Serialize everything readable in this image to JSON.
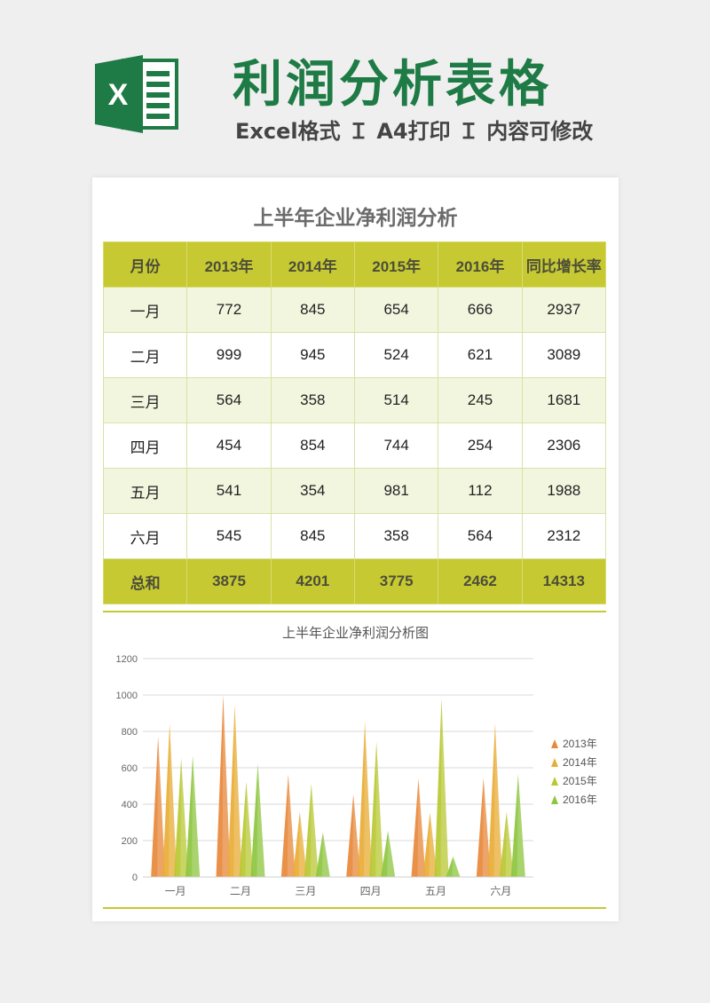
{
  "header": {
    "title": "利润分析表格",
    "subtitle": "Excel格式 Ｉ A4打印 Ｉ 内容可修改",
    "logo_letter": "X",
    "logo_icon": "excel-logo-icon",
    "brand_color": "#1e7b45"
  },
  "table": {
    "title": "上半年企业净利润分析",
    "columns": [
      "月份",
      "2013年",
      "2014年",
      "2015年",
      "2016年",
      "同比增长率"
    ],
    "rows": [
      [
        "一月",
        "772",
        "845",
        "654",
        "666",
        "2937"
      ],
      [
        "二月",
        "999",
        "945",
        "524",
        "621",
        "3089"
      ],
      [
        "三月",
        "564",
        "358",
        "514",
        "245",
        "1681"
      ],
      [
        "四月",
        "454",
        "854",
        "744",
        "254",
        "2306"
      ],
      [
        "五月",
        "541",
        "354",
        "981",
        "112",
        "1988"
      ],
      [
        "六月",
        "545",
        "845",
        "358",
        "564",
        "2312"
      ]
    ],
    "total": [
      "总和",
      "3875",
      "4201",
      "3775",
      "2462",
      "14313"
    ],
    "header_color": "#c6c931",
    "stripe_color": "#f3f6df"
  },
  "chart_data": {
    "type": "bar",
    "title": "上半年企业净利润分析图",
    "categories": [
      "一月",
      "二月",
      "三月",
      "四月",
      "五月",
      "六月"
    ],
    "series": [
      {
        "name": "2013年",
        "values": [
          772,
          999,
          564,
          454,
          541,
          545
        ],
        "color": "#e8883a"
      },
      {
        "name": "2014年",
        "values": [
          845,
          945,
          358,
          854,
          354,
          845
        ],
        "color": "#e9ad35"
      },
      {
        "name": "2015年",
        "values": [
          654,
          524,
          514,
          744,
          981,
          358
        ],
        "color": "#b9c832"
      },
      {
        "name": "2016年",
        "values": [
          666,
          621,
          245,
          254,
          112,
          564
        ],
        "color": "#8dc63f"
      }
    ],
    "ylim": [
      0,
      1200
    ],
    "yticks": [
      0,
      200,
      400,
      600,
      800,
      1000,
      1200
    ],
    "grid": true,
    "legend": "right"
  }
}
